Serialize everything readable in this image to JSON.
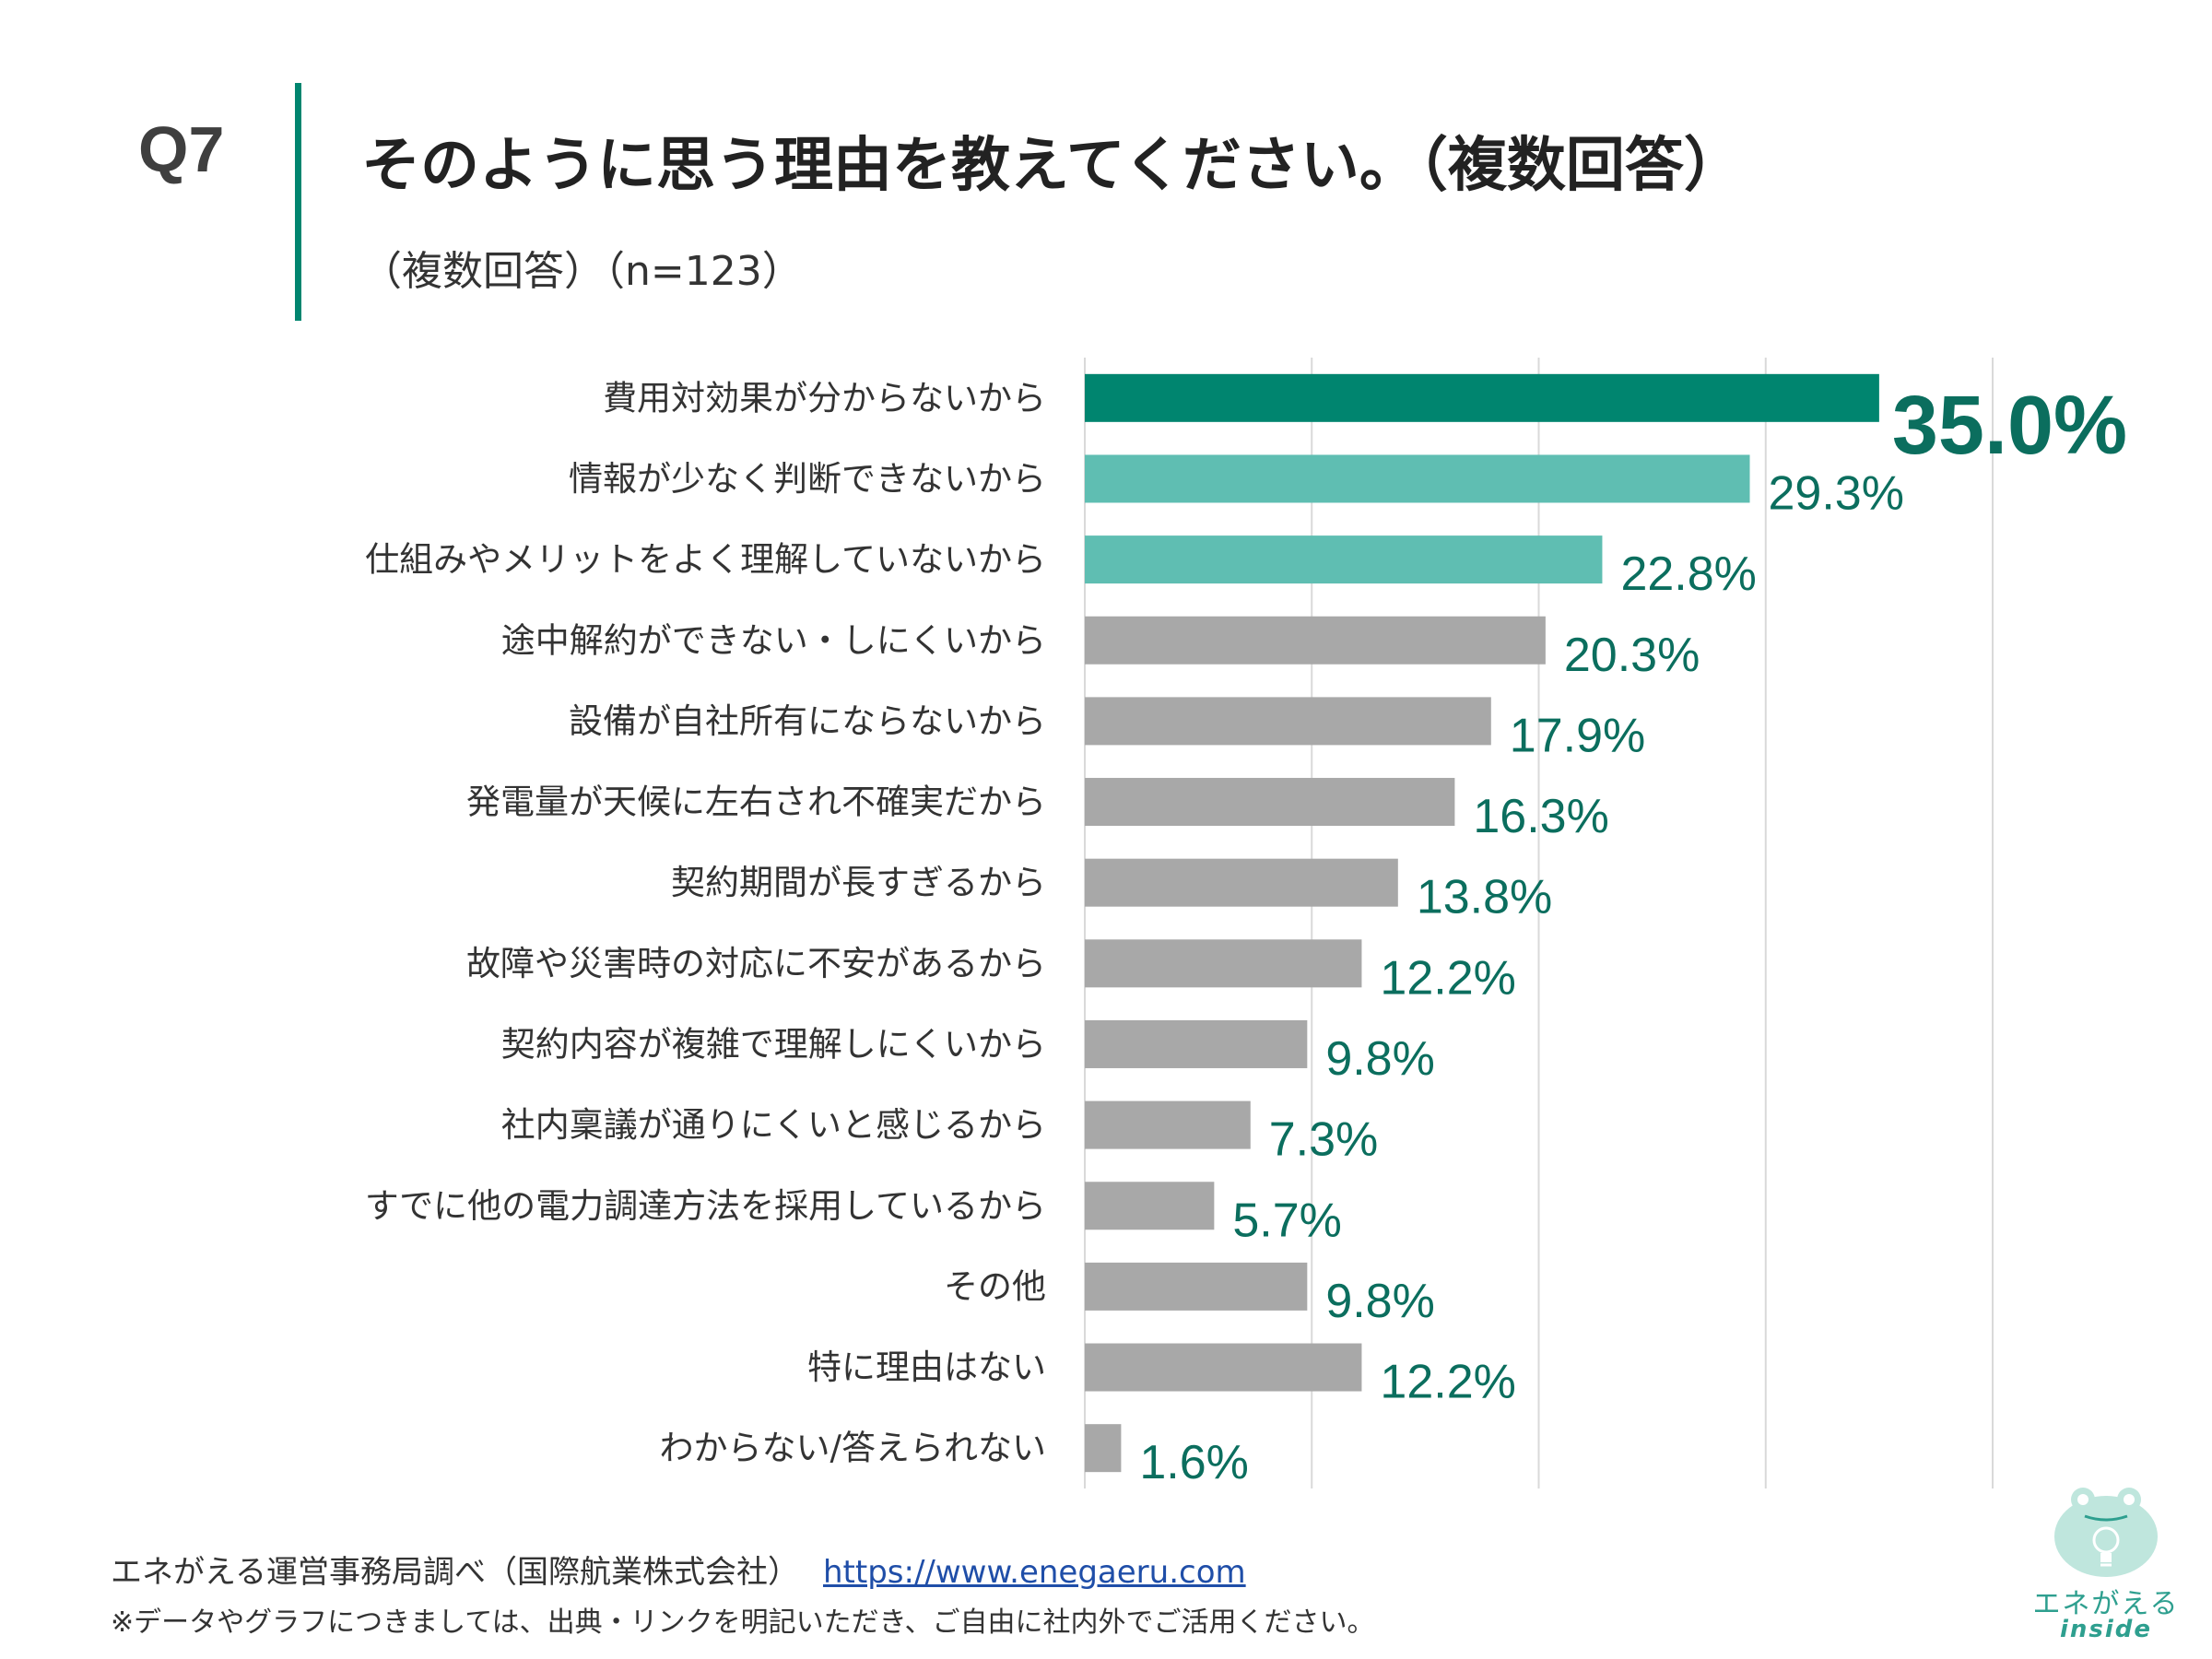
{
  "question": {
    "number": "Q7",
    "title": "そのように思う理由を教えてください。（複数回答）",
    "subtitle": "（複数回答）（n=123）"
  },
  "colors": {
    "accent": "#00856f",
    "highlight": "#5fbeb2",
    "neutral": "#a8a8a8",
    "label_text": "#0b6e5e",
    "grid": "#d9d9d9"
  },
  "chart_data": {
    "type": "bar",
    "orientation": "horizontal",
    "categories": [
      "費用対効果が分からないから",
      "情報が少なく判断できないから",
      "仕組みやメリットをよく理解していないから",
      "途中解約ができない・しにくいから",
      "設備が自社所有にならないから",
      "発電量が天候に左右され不確実だから",
      "契約期間が長すぎるから",
      "故障や災害時の対応に不安があるから",
      "契約内容が複雑で理解しにくいから",
      "社内稟議が通りにくいと感じるから",
      "すでに他の電力調達方法を採用しているから",
      "その他",
      "特に理由はない",
      "わからない/答えられない"
    ],
    "values": [
      35.0,
      29.3,
      22.8,
      20.3,
      17.9,
      16.3,
      13.8,
      12.2,
      9.8,
      7.3,
      5.7,
      9.8,
      12.2,
      1.6
    ],
    "value_labels": [
      "35.0%",
      "29.3%",
      "22.8%",
      "20.3%",
      "17.9%",
      "16.3%",
      "13.8%",
      "12.2%",
      "9.8%",
      "7.3%",
      "5.7%",
      "9.8%",
      "12.2%",
      "1.6%"
    ],
    "bar_tiers": [
      "accent",
      "highlight",
      "highlight",
      "neutral",
      "neutral",
      "neutral",
      "neutral",
      "neutral",
      "neutral",
      "neutral",
      "neutral",
      "neutral",
      "neutral",
      "neutral"
    ],
    "xlim": [
      0,
      40
    ],
    "grid_step": 10,
    "grid": true,
    "title": "そのように思う理由を教えてください。（複数回答）"
  },
  "footer": {
    "source": "エネがえる運営事務局調べ（国際航業株式会社）",
    "url": "https://www.enegaeru.com",
    "note": "※データやグラフにつきましては、出典・リンクを明記いただき、ご自由に社内外でご活用ください。"
  },
  "logo": {
    "name": "エネがえる",
    "sub": "inside"
  }
}
